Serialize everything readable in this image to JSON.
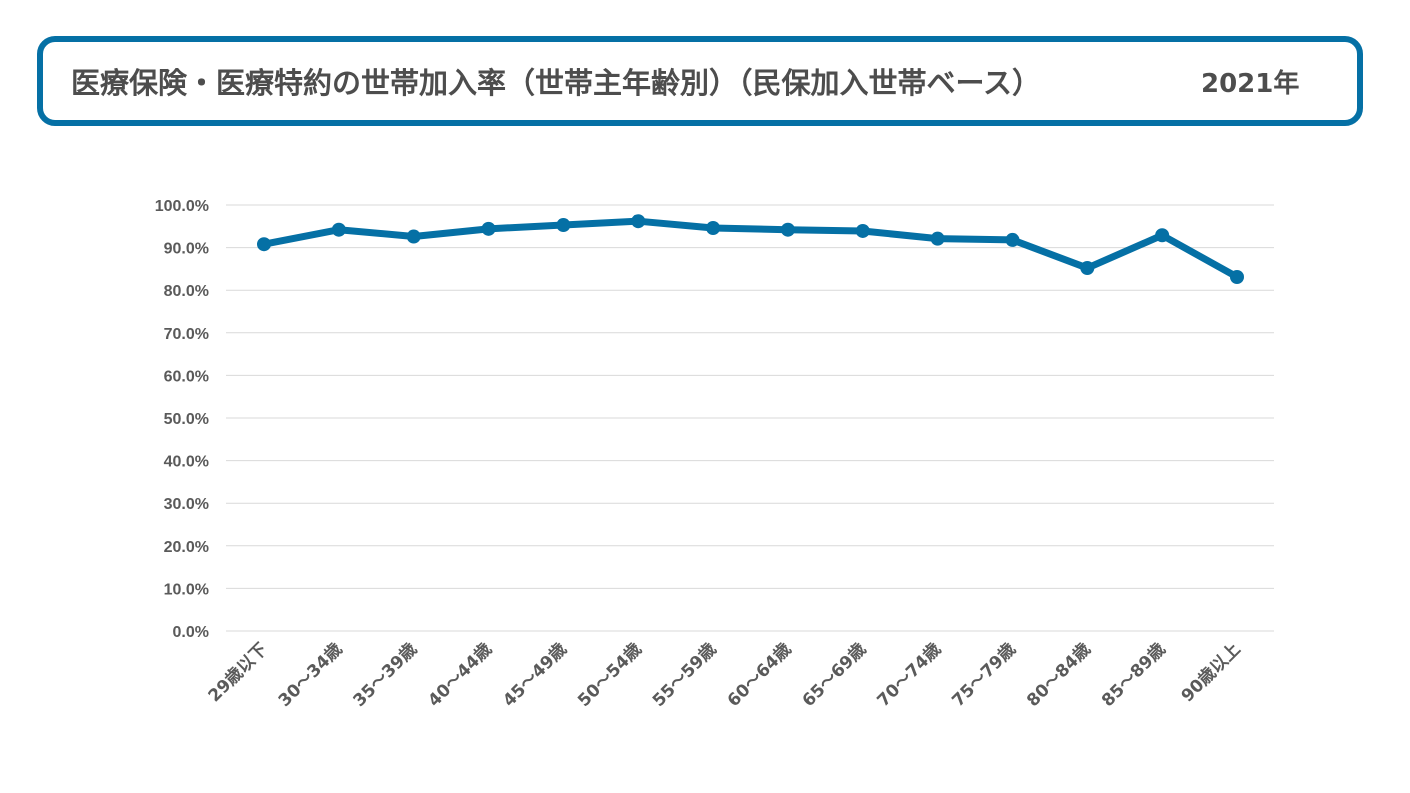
{
  "header": {
    "title": "医療保険・医療特約の世帯加入率（世帯主年齢別）（民保加入世帯ベース）",
    "year": "2021年"
  },
  "colors": {
    "accent": "#0570a5",
    "grid": "#d9d9d9",
    "text": "#5a5a5a"
  },
  "chart_data": {
    "type": "line",
    "title": "医療保険・医療特約の世帯加入率（世帯主年齢別）（民保加入世帯ベース） 2021年",
    "xlabel": "",
    "ylabel": "",
    "ylim": [
      0,
      100
    ],
    "yticks": [
      "0.0%",
      "10.0%",
      "20.0%",
      "30.0%",
      "40.0%",
      "50.0%",
      "60.0%",
      "70.0%",
      "80.0%",
      "90.0%",
      "100.0%"
    ],
    "grid": true,
    "legend": "none",
    "categories": [
      "29歳以下",
      "30～34歳",
      "35～39歳",
      "40～44歳",
      "45～49歳",
      "50～54歳",
      "55～59歳",
      "60～64歳",
      "65～69歳",
      "70～74歳",
      "75～79歳",
      "80～84歳",
      "85～89歳",
      "90歳以上"
    ],
    "series": [
      {
        "name": "世帯加入率",
        "values": [
          90.8,
          94.2,
          92.6,
          94.4,
          95.3,
          96.2,
          94.6,
          94.2,
          93.9,
          92.1,
          91.8,
          85.2,
          92.9,
          83.1
        ]
      }
    ]
  }
}
